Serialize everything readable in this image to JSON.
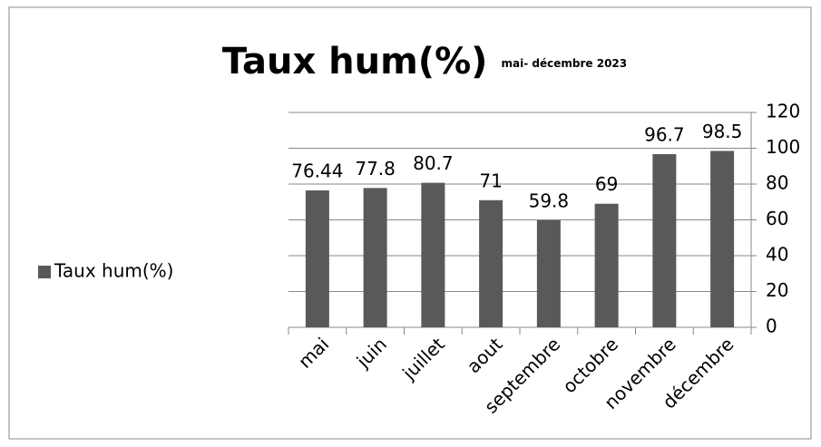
{
  "chart_data": {
    "type": "bar",
    "title": "Taux hum(%)",
    "subtitle": "mai- décembre 2023",
    "categories": [
      "mai",
      "juin",
      "juillet",
      "aout",
      "septembre",
      "octobre",
      "novembre",
      "décembre"
    ],
    "series": [
      {
        "name": "Taux hum(%)",
        "color": "#595959",
        "values": [
          76.44,
          77.8,
          80.7,
          71,
          59.8,
          69,
          96.7,
          98.5
        ]
      }
    ],
    "ylim": [
      0,
      120
    ],
    "yticks": [
      0,
      20,
      40,
      60,
      80,
      100,
      120
    ],
    "grid": true,
    "y_axis_side": "right",
    "legend": "left"
  }
}
